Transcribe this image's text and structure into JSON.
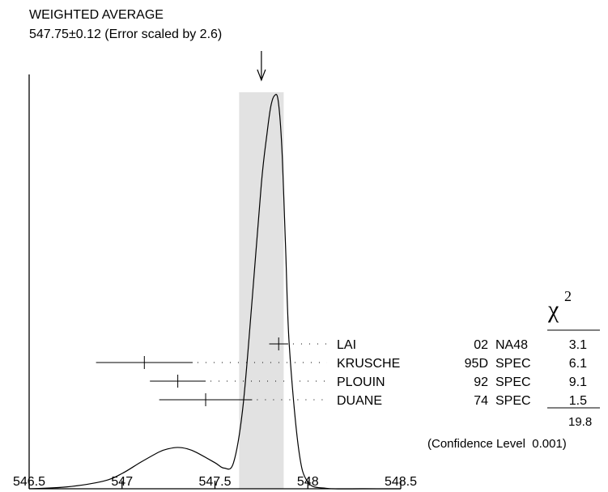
{
  "chart_data": {
    "type": "ideogram",
    "title_line1": "WEIGHTED AVERAGE",
    "title_line2": "547.75±0.12 (Error scaled by 2.6)",
    "xlim": [
      546.5,
      548.5
    ],
    "x_ticks": [
      {
        "value": 546.5,
        "label": "546.5"
      },
      {
        "value": 547,
        "label": "547"
      },
      {
        "value": 547.5,
        "label": "547.5"
      },
      {
        "value": 548,
        "label": "548"
      },
      {
        "value": 548.5,
        "label": "548.5"
      }
    ],
    "weighted_average": {
      "value": 547.75,
      "error": 0.12,
      "band": [
        547.63,
        547.87
      ]
    },
    "chi2_symbol": "χ",
    "chi2_exponent": "2",
    "measurements": [
      {
        "name": "LAI",
        "year": "02",
        "tech": "NA48",
        "value": 547.843,
        "error": 0.051,
        "chi2": "3.1"
      },
      {
        "name": "KRUSCHE",
        "year": "95D",
        "tech": "SPEC",
        "value": 547.12,
        "error": 0.26,
        "chi2": "6.1"
      },
      {
        "name": "PLOUIN",
        "year": "92",
        "tech": "SPEC",
        "value": 547.3,
        "error": 0.15,
        "chi2": "9.1"
      },
      {
        "name": "DUANE",
        "year": "74",
        "tech": "SPEC",
        "value": 547.45,
        "error": 0.25,
        "chi2": "1.5"
      }
    ],
    "chi2_total": "19.8",
    "confidence_level": "(Confidence Level  0.001)",
    "curve": {
      "x": [
        546.5,
        546.7,
        546.9,
        547.0,
        547.1,
        547.2,
        547.25,
        547.3,
        547.35,
        547.4,
        547.5,
        547.55,
        547.6,
        547.65,
        547.7,
        547.75,
        547.78,
        547.8,
        547.82,
        547.84,
        547.86,
        547.88,
        547.9,
        547.95,
        548.0,
        548.1,
        548.3,
        548.5
      ],
      "y": [
        0.0,
        0.04,
        0.17,
        0.34,
        0.59,
        0.82,
        0.89,
        0.92,
        0.89,
        0.81,
        0.58,
        0.46,
        0.58,
        1.8,
        4.2,
        6.8,
        7.9,
        8.5,
        8.75,
        8.65,
        7.6,
        5.4,
        3.2,
        0.9,
        0.15,
        0.01,
        0.0,
        0.0
      ],
      "ylim": [
        0,
        8.9
      ]
    }
  }
}
